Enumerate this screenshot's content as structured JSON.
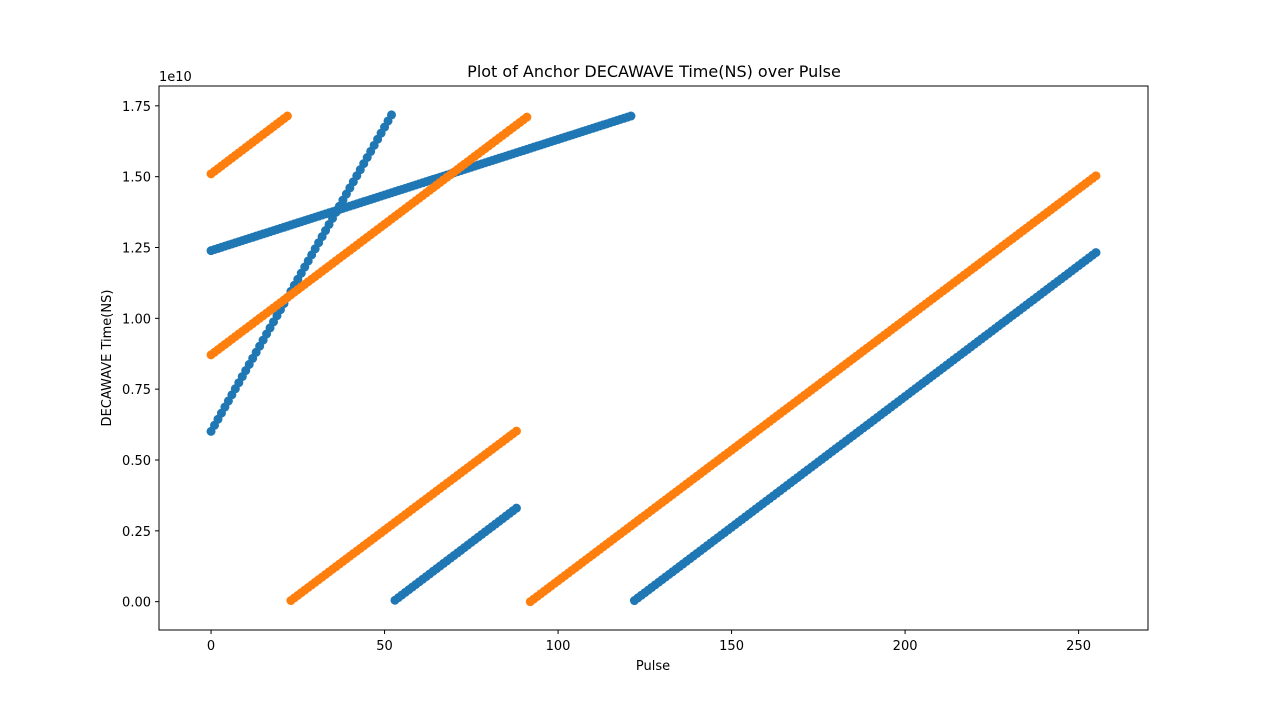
{
  "chart_data": {
    "type": "scatter",
    "title": "Plot of Anchor DECAWAVE Time(NS) over Pulse",
    "xlabel": "Pulse",
    "ylabel": "DECAWAVE Time(NS)",
    "y_offset_text": "1e10",
    "xlim": [
      -15,
      270
    ],
    "ylim": [
      -0.1,
      1.82
    ],
    "x_ticks": [
      0,
      50,
      100,
      150,
      200,
      250
    ],
    "x_tick_labels": [
      "0",
      "50",
      "100",
      "150",
      "200",
      "250"
    ],
    "y_ticks": [
      0.0,
      0.25,
      0.5,
      0.75,
      1.0,
      1.25,
      1.5,
      1.75
    ],
    "y_tick_labels": [
      "0.00",
      "0.25",
      "0.50",
      "0.75",
      "1.00",
      "1.25",
      "1.50",
      "1.75"
    ],
    "y_scale": 10000000000,
    "grid": false,
    "legend": "none",
    "series": [
      {
        "color": "#1f77b4",
        "segments": [
          {
            "x_start": 0,
            "x_end": 52,
            "y_start": 0.601,
            "y_end": 1.718
          },
          {
            "x_start": 53,
            "x_end": 88,
            "y_start": 0.005,
            "y_end": 0.33
          },
          {
            "x_start": 0,
            "x_end": 121,
            "y_start": 1.239,
            "y_end": 1.714
          },
          {
            "x_start": 122,
            "x_end": 255,
            "y_start": 0.004,
            "y_end": 1.232
          }
        ]
      },
      {
        "color": "#ff7f0e",
        "segments": [
          {
            "x_start": 0,
            "x_end": 22,
            "y_start": 1.51,
            "y_end": 1.714
          },
          {
            "x_start": 23,
            "x_end": 88,
            "y_start": 0.004,
            "y_end": 0.602
          },
          {
            "x_start": 0,
            "x_end": 91,
            "y_start": 0.871,
            "y_end": 1.71
          },
          {
            "x_start": 92,
            "x_end": 255,
            "y_start": 0.0,
            "y_end": 1.503
          }
        ]
      }
    ]
  }
}
